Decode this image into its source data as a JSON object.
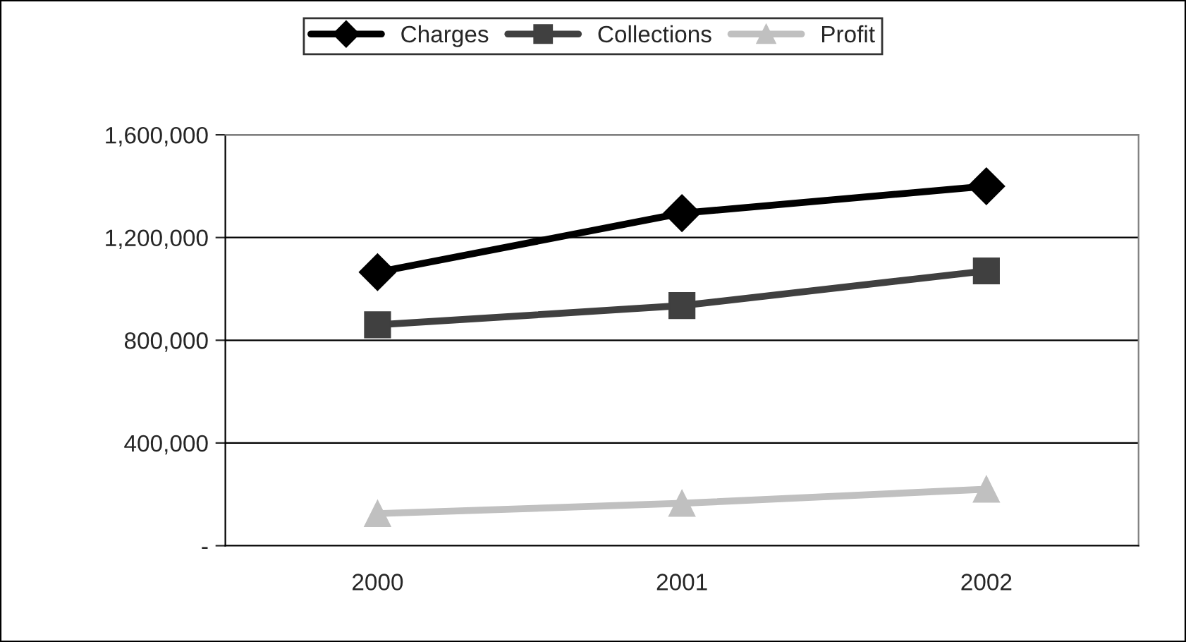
{
  "chart_data": {
    "type": "line",
    "categories": [
      "2000",
      "2001",
      "2002"
    ],
    "series": [
      {
        "name": "Charges",
        "color": "#000000",
        "marker": "diamond",
        "values": [
          1065000,
          1295000,
          1400000
        ]
      },
      {
        "name": "Collections",
        "color": "#404040",
        "marker": "square",
        "values": [
          860000,
          935000,
          1070000
        ]
      },
      {
        "name": "Profit",
        "color": "#c0c0c0",
        "marker": "triangle",
        "values": [
          125000,
          165000,
          220000
        ]
      }
    ],
    "ylim": [
      0,
      1600000
    ],
    "yticks": [
      {
        "value": 0,
        "label": "-"
      },
      {
        "value": 400000,
        "label": "400,000"
      },
      {
        "value": 800000,
        "label": "800,000"
      },
      {
        "value": 1200000,
        "label": "1,200,000"
      },
      {
        "value": 1600000,
        "label": "1,600,000"
      }
    ],
    "grid": "y",
    "legend": "top",
    "line_style": "solid"
  }
}
